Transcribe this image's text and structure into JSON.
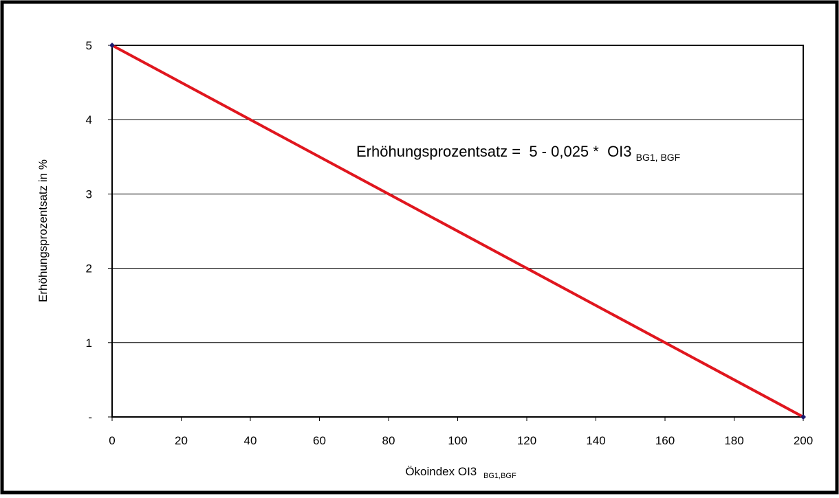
{
  "chart_data": {
    "type": "line",
    "title": "",
    "xlabel": "Ökoindex OI3",
    "xlabel_sub": "BG1,BGF",
    "ylabel": "Erhöhungsprozentsatz in %",
    "x_ticks": [
      0,
      20,
      40,
      60,
      80,
      100,
      120,
      140,
      160,
      180,
      200
    ],
    "y_ticks": [
      {
        "value": 0,
        "label": "-"
      },
      {
        "value": 1,
        "label": "1"
      },
      {
        "value": 2,
        "label": "2"
      },
      {
        "value": 3,
        "label": "3"
      },
      {
        "value": 4,
        "label": "4"
      },
      {
        "value": 5,
        "label": "5"
      }
    ],
    "xlim": [
      0,
      200
    ],
    "ylim": [
      0,
      5
    ],
    "grid": "horizontal",
    "series": [
      {
        "x": [
          0,
          200
        ],
        "y": [
          5,
          0
        ],
        "color": "#e0161e",
        "marker_color": "#1a1a6e"
      }
    ],
    "annotation": {
      "main": "Erhöhungsprozentsatz =  5 - 0,025 *  OI3",
      "sub": "BG1, BGF"
    }
  }
}
